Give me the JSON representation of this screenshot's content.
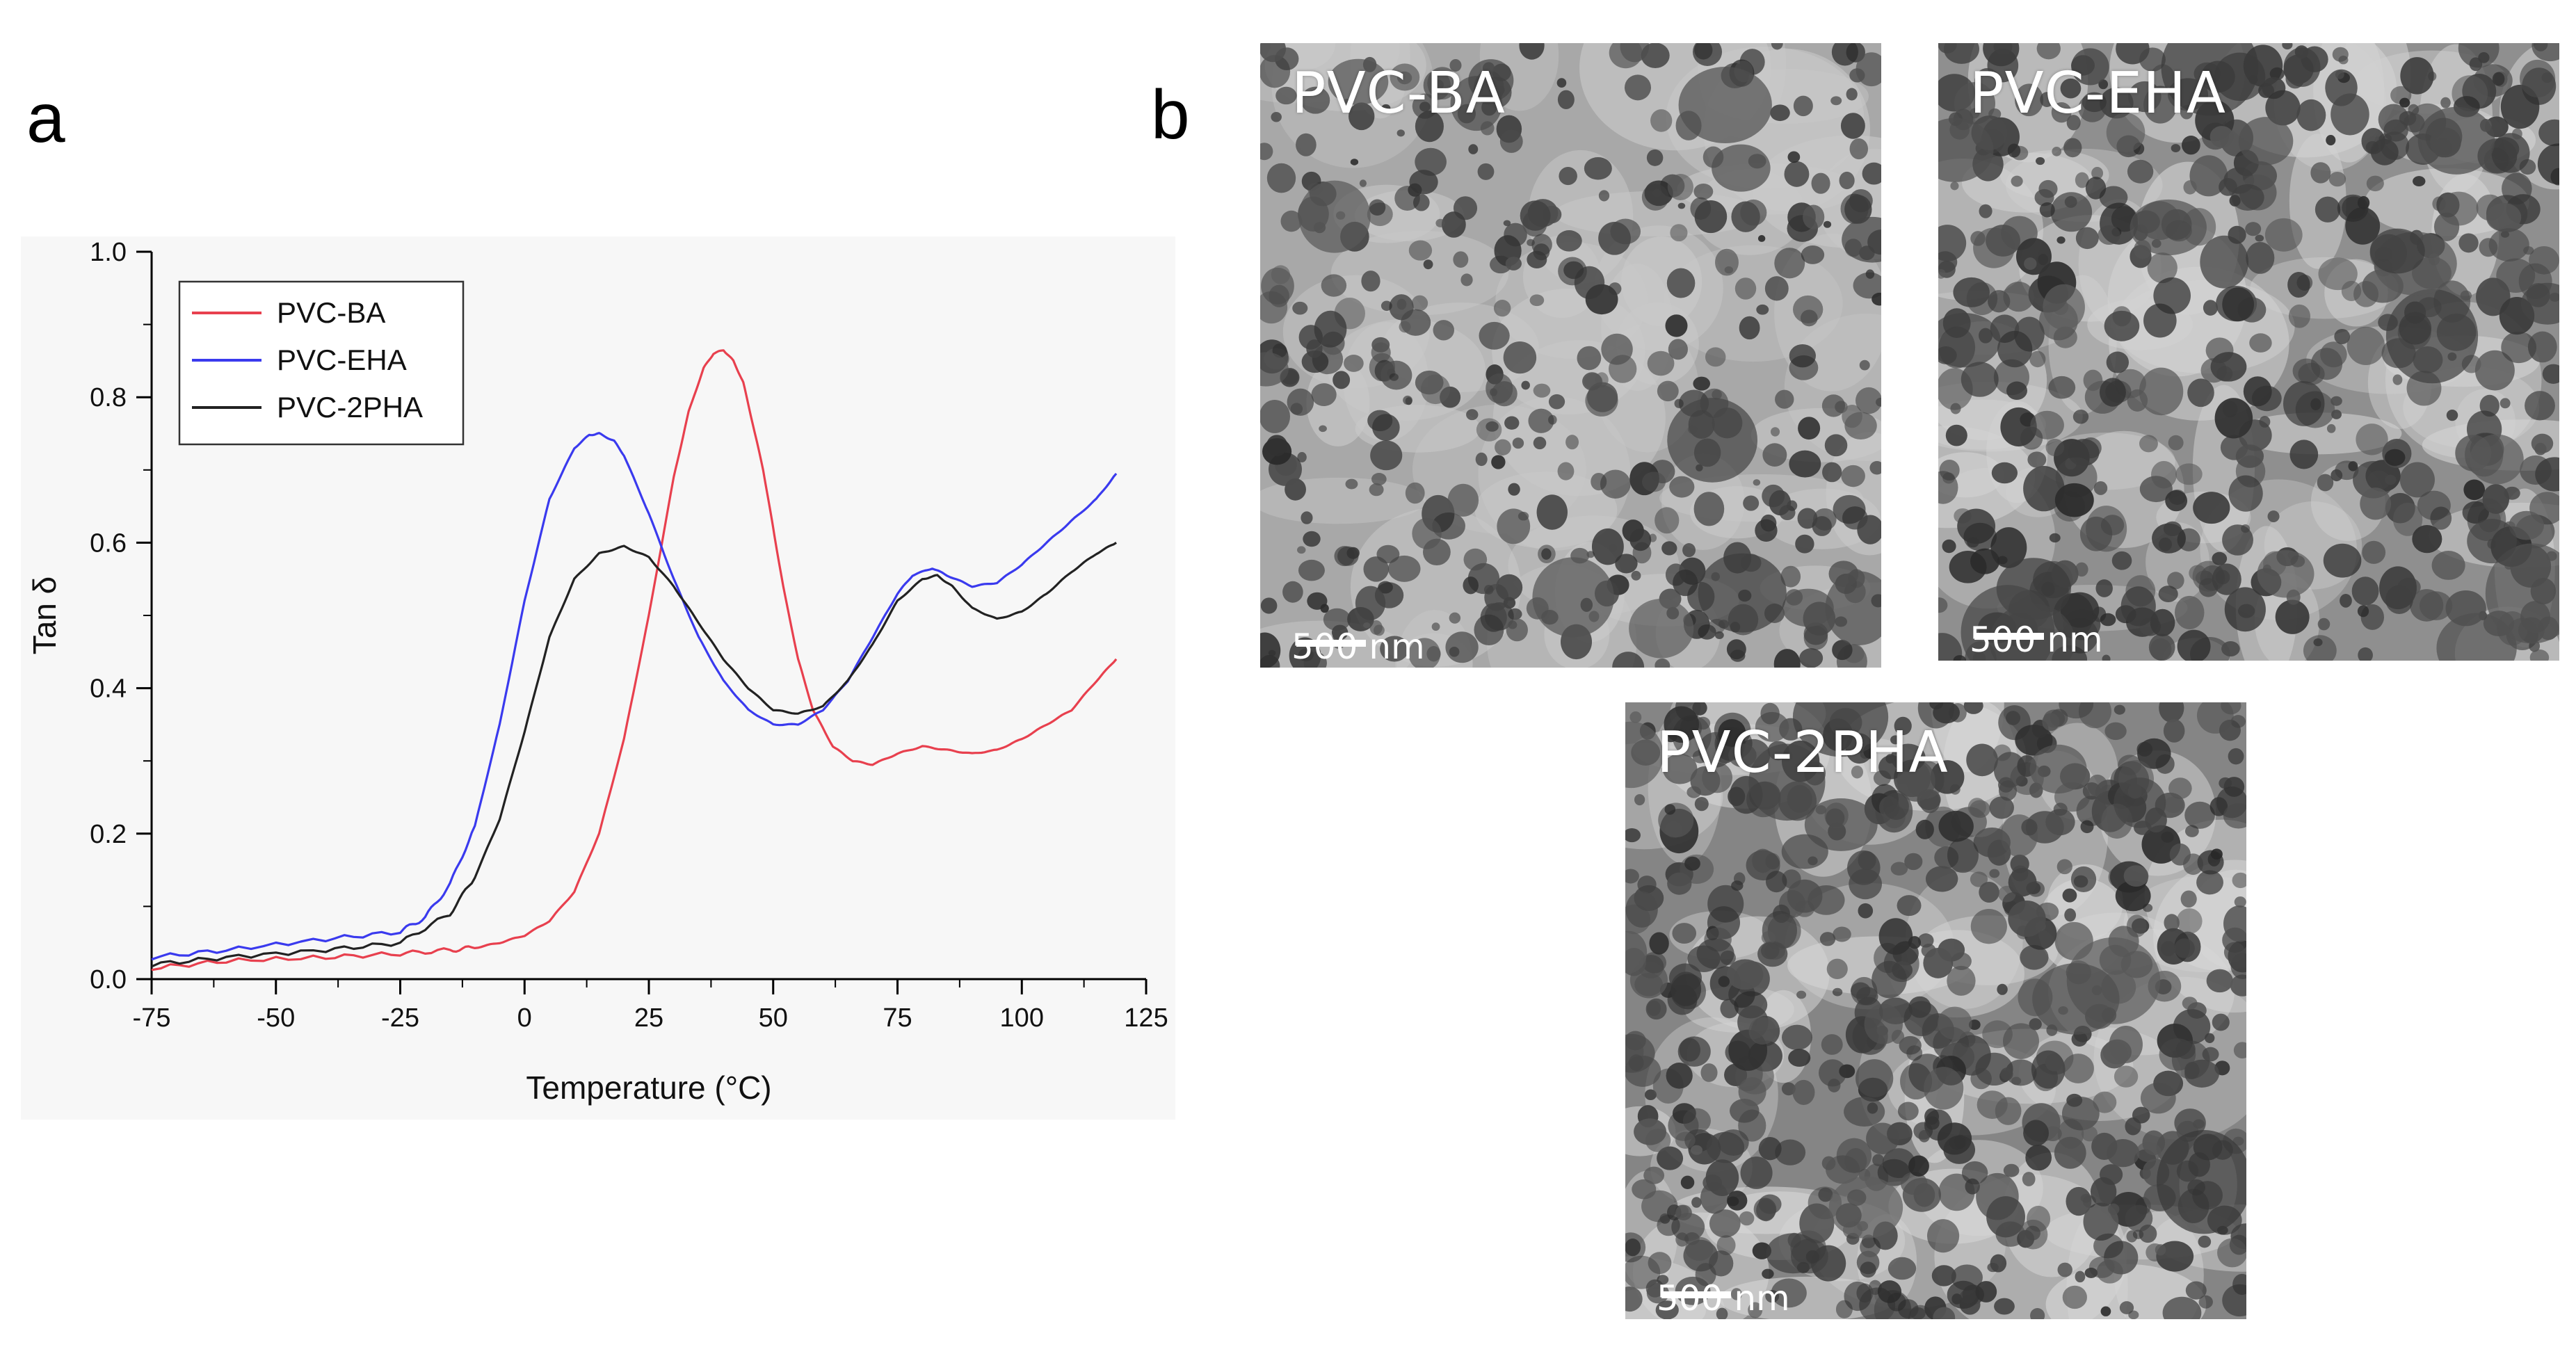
{
  "panel_a": {
    "letter": "a"
  },
  "panel_b": {
    "letter": "b"
  },
  "chart_data": {
    "type": "line",
    "title": "",
    "xlabel": "Temperature (°C)",
    "ylabel": "Tan δ",
    "xlim": [
      -75,
      125
    ],
    "ylim": [
      0.0,
      1.0
    ],
    "xticks": [
      "-75",
      "-50",
      "-25",
      "0",
      "25",
      "50",
      "75",
      "100",
      "125"
    ],
    "yticks": [
      "0.0",
      "0.2",
      "0.4",
      "0.6",
      "0.8",
      "1.0"
    ],
    "legend_position": "top-left",
    "series": [
      {
        "name": "PVC-BA",
        "color": "#e8404e",
        "x": [
          -75,
          -60,
          -40,
          -25,
          -15,
          -10,
          -5,
          0,
          5,
          10,
          15,
          20,
          25,
          30,
          33,
          36,
          38,
          40,
          42,
          44,
          46,
          48,
          50,
          52,
          55,
          58,
          62,
          66,
          70,
          75,
          80,
          85,
          90,
          95,
          100,
          105,
          110,
          115,
          119
        ],
        "y": [
          0.015,
          0.025,
          0.03,
          0.035,
          0.04,
          0.043,
          0.05,
          0.06,
          0.08,
          0.12,
          0.2,
          0.33,
          0.5,
          0.69,
          0.78,
          0.84,
          0.86,
          0.865,
          0.85,
          0.82,
          0.76,
          0.7,
          0.62,
          0.54,
          0.44,
          0.37,
          0.32,
          0.3,
          0.295,
          0.31,
          0.32,
          0.315,
          0.31,
          0.315,
          0.33,
          0.35,
          0.37,
          0.41,
          0.44
        ]
      },
      {
        "name": "PVC-EHA",
        "color": "#3a3aee",
        "x": [
          -75,
          -60,
          -40,
          -25,
          -20,
          -15,
          -10,
          -5,
          0,
          5,
          10,
          13,
          15,
          18,
          20,
          25,
          30,
          35,
          40,
          45,
          50,
          55,
          60,
          65,
          70,
          75,
          78,
          82,
          85,
          90,
          95,
          100,
          105,
          110,
          115,
          119
        ],
        "y": [
          0.03,
          0.04,
          0.055,
          0.065,
          0.085,
          0.13,
          0.21,
          0.35,
          0.52,
          0.66,
          0.73,
          0.748,
          0.75,
          0.74,
          0.72,
          0.64,
          0.55,
          0.47,
          0.41,
          0.37,
          0.35,
          0.35,
          0.37,
          0.41,
          0.47,
          0.53,
          0.555,
          0.565,
          0.555,
          0.54,
          0.545,
          0.57,
          0.6,
          0.63,
          0.66,
          0.695
        ]
      },
      {
        "name": "PVC-2PHA",
        "color": "#222222",
        "x": [
          -75,
          -60,
          -40,
          -25,
          -15,
          -10,
          -5,
          0,
          5,
          10,
          15,
          20,
          25,
          30,
          35,
          40,
          45,
          50,
          55,
          60,
          65,
          70,
          75,
          80,
          83,
          86,
          90,
          95,
          100,
          105,
          110,
          115,
          119
        ],
        "y": [
          0.02,
          0.03,
          0.04,
          0.05,
          0.09,
          0.14,
          0.22,
          0.34,
          0.47,
          0.55,
          0.585,
          0.595,
          0.58,
          0.54,
          0.49,
          0.44,
          0.4,
          0.37,
          0.365,
          0.375,
          0.41,
          0.46,
          0.52,
          0.55,
          0.555,
          0.54,
          0.51,
          0.495,
          0.505,
          0.53,
          0.56,
          0.585,
          0.6
        ]
      }
    ]
  },
  "tem_images": [
    {
      "label": "PVC-BA",
      "scale": "500 nm"
    },
    {
      "label": "PVC-EHA",
      "scale": "500 nm"
    },
    {
      "label": "PVC-2PHA",
      "scale": "500 nm"
    }
  ]
}
